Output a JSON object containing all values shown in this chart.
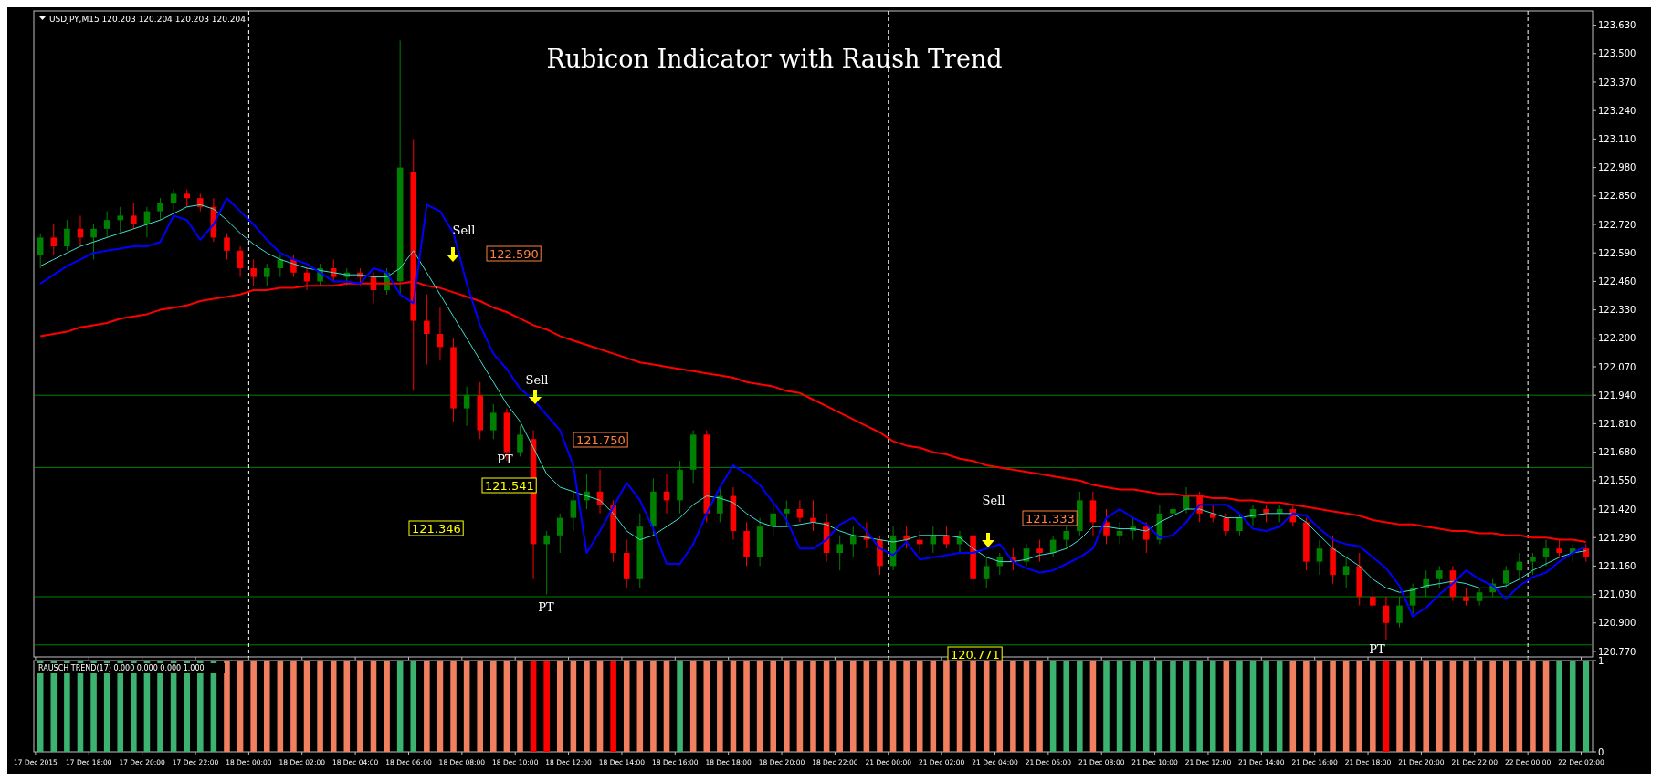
{
  "chart_data": [
    {
      "type": "candlestick",
      "title": "Rubicon Indicator with Raush Trend",
      "subtitle": "USDJPY,M15  120.203 120.204 120.203 120.204",
      "categories": [
        "17 Dec 2015",
        null,
        null,
        null,
        "17 Dec 18:00",
        null,
        null,
        null,
        "17 Dec 20:00",
        null,
        null,
        null,
        "17 Dec 22:00",
        null,
        null,
        null,
        "18 Dec 00:00",
        null,
        null,
        null,
        "18 Dec 02:00",
        null,
        null,
        null,
        "18 Dec 04:00",
        null,
        null,
        null,
        "18 Dec 06:00",
        null,
        null,
        null,
        "18 Dec 08:00",
        null,
        null,
        null,
        "18 Dec 10:00",
        null,
        null,
        null,
        "18 Dec 12:00",
        null,
        null,
        null,
        "18 Dec 14:00",
        null,
        null,
        null,
        "18 Dec 16:00",
        null,
        null,
        null,
        "18 Dec 18:00",
        null,
        null,
        null,
        "18 Dec 20:00",
        null,
        null,
        null,
        "18 Dec 22:00",
        null,
        null,
        null,
        "21 Dec 00:00",
        null,
        null,
        null,
        "21 Dec 02:00",
        null,
        null,
        null,
        "21 Dec 04:00",
        null,
        null,
        null,
        "21 Dec 06:00",
        null,
        null,
        null,
        "21 Dec 08:00",
        null,
        null,
        null,
        "21 Dec 10:00",
        null,
        null,
        null,
        "21 Dec 12:00",
        null,
        null,
        null,
        "21 Dec 14:00",
        null,
        null,
        null,
        "21 Dec 16:00",
        null,
        null,
        null,
        "21 Dec 18:00",
        null,
        null,
        null,
        "21 Dec 20:00",
        null,
        null,
        null,
        "21 Dec 22:00",
        null,
        null,
        null,
        "22 Dec 00:00",
        null,
        null,
        null,
        "22 Dec 02:00"
      ],
      "ohlc": [
        [
          122.58,
          122.68,
          122.52,
          122.66
        ],
        [
          122.66,
          122.72,
          122.58,
          122.62
        ],
        [
          122.62,
          122.74,
          122.6,
          122.7
        ],
        [
          122.7,
          122.76,
          122.62,
          122.66
        ],
        [
          122.66,
          122.72,
          122.56,
          122.7
        ],
        [
          122.7,
          122.78,
          122.66,
          122.74
        ],
        [
          122.74,
          122.8,
          122.68,
          122.76
        ],
        [
          122.76,
          122.82,
          122.7,
          122.72
        ],
        [
          122.72,
          122.8,
          122.66,
          122.78
        ],
        [
          122.78,
          122.84,
          122.74,
          122.82
        ],
        [
          122.82,
          122.88,
          122.78,
          122.86
        ],
        [
          122.86,
          122.88,
          122.8,
          122.84
        ],
        [
          122.84,
          122.86,
          122.78,
          122.8
        ],
        [
          122.8,
          122.84,
          122.64,
          122.66
        ],
        [
          122.66,
          122.68,
          122.56,
          122.6
        ],
        [
          122.6,
          122.62,
          122.48,
          122.52
        ],
        [
          122.52,
          122.56,
          122.44,
          122.48
        ],
        [
          122.48,
          122.54,
          122.44,
          122.52
        ],
        [
          122.52,
          122.58,
          122.48,
          122.56
        ],
        [
          122.56,
          122.58,
          122.48,
          122.5
        ],
        [
          122.5,
          122.52,
          122.42,
          122.46
        ],
        [
          122.46,
          122.54,
          122.44,
          122.52
        ],
        [
          122.52,
          122.56,
          122.46,
          122.48
        ],
        [
          122.48,
          122.52,
          122.44,
          122.5
        ],
        [
          122.5,
          122.52,
          122.44,
          122.48
        ],
        [
          122.48,
          122.5,
          122.36,
          122.42
        ],
        [
          122.42,
          122.52,
          122.4,
          122.5
        ],
        [
          122.46,
          123.56,
          122.4,
          122.98
        ],
        [
          122.96,
          123.11,
          121.96,
          122.28
        ],
        [
          122.28,
          122.4,
          122.08,
          122.22
        ],
        [
          122.22,
          122.34,
          122.1,
          122.16
        ],
        [
          122.16,
          122.2,
          121.82,
          121.88
        ],
        [
          121.88,
          121.98,
          121.8,
          121.94
        ],
        [
          121.94,
          122,
          121.74,
          121.78
        ],
        [
          121.78,
          121.9,
          121.74,
          121.86
        ],
        [
          121.86,
          121.88,
          121.64,
          121.68
        ],
        [
          121.68,
          121.8,
          121.66,
          121.76
        ],
        [
          121.74,
          121.78,
          121.1,
          121.26
        ],
        [
          121.26,
          121.32,
          121.03,
          121.3
        ],
        [
          121.3,
          121.4,
          121.22,
          121.38
        ],
        [
          121.38,
          121.5,
          121.32,
          121.46
        ],
        [
          121.46,
          121.58,
          121.42,
          121.5
        ],
        [
          121.5,
          121.6,
          121.4,
          121.44
        ],
        [
          121.44,
          121.46,
          121.18,
          121.22
        ],
        [
          121.22,
          121.28,
          121.06,
          121.1
        ],
        [
          121.1,
          121.4,
          121.06,
          121.34
        ],
        [
          121.34,
          121.56,
          121.3,
          121.5
        ],
        [
          121.5,
          121.58,
          121.4,
          121.46
        ],
        [
          121.46,
          121.64,
          121.4,
          121.6
        ],
        [
          121.6,
          121.78,
          121.54,
          121.76
        ],
        [
          121.76,
          121.78,
          121.36,
          121.4
        ],
        [
          121.4,
          121.52,
          121.36,
          121.48
        ],
        [
          121.48,
          121.52,
          121.28,
          121.32
        ],
        [
          121.32,
          121.36,
          121.16,
          121.2
        ],
        [
          121.2,
          121.38,
          121.16,
          121.34
        ],
        [
          121.34,
          121.44,
          121.3,
          121.4
        ],
        [
          121.4,
          121.46,
          121.34,
          121.42
        ],
        [
          121.42,
          121.46,
          121.36,
          121.38
        ],
        [
          121.38,
          121.46,
          121.32,
          121.36
        ],
        [
          121.36,
          121.4,
          121.18,
          121.22
        ],
        [
          121.22,
          121.3,
          121.14,
          121.26
        ],
        [
          121.26,
          121.34,
          121.2,
          121.3
        ],
        [
          121.3,
          121.36,
          121.24,
          121.28
        ],
        [
          121.28,
          121.3,
          121.12,
          121.16
        ],
        [
          121.16,
          121.34,
          121.14,
          121.3
        ],
        [
          121.3,
          121.34,
          121.24,
          121.28
        ],
        [
          121.28,
          121.32,
          121.22,
          121.26
        ],
        [
          121.26,
          121.34,
          121.22,
          121.3
        ],
        [
          121.3,
          121.34,
          121.24,
          121.26
        ],
        [
          121.26,
          121.32,
          121.22,
          121.3
        ],
        [
          121.3,
          121.32,
          121.04,
          121.1
        ],
        [
          121.1,
          121.2,
          121.06,
          121.16
        ],
        [
          121.16,
          121.22,
          121.12,
          121.2
        ],
        [
          121.2,
          121.24,
          121.14,
          121.18
        ],
        [
          121.18,
          121.26,
          121.16,
          121.24
        ],
        [
          121.24,
          121.28,
          121.18,
          121.22
        ],
        [
          121.22,
          121.3,
          121.2,
          121.28
        ],
        [
          121.28,
          121.34,
          121.24,
          121.32
        ],
        [
          121.32,
          121.5,
          121.3,
          121.46
        ],
        [
          121.46,
          121.5,
          121.3,
          121.36
        ],
        [
          121.36,
          121.42,
          121.26,
          121.3
        ],
        [
          121.3,
          121.36,
          121.26,
          121.32
        ],
        [
          121.32,
          121.38,
          121.28,
          121.34
        ],
        [
          121.34,
          121.36,
          121.22,
          121.28
        ],
        [
          121.28,
          121.44,
          121.26,
          121.4
        ],
        [
          121.4,
          121.46,
          121.36,
          121.42
        ],
        [
          121.42,
          121.52,
          121.4,
          121.48
        ],
        [
          121.48,
          121.5,
          121.36,
          121.4
        ],
        [
          121.4,
          121.44,
          121.36,
          121.38
        ],
        [
          121.38,
          121.4,
          121.3,
          121.32
        ],
        [
          121.32,
          121.4,
          121.3,
          121.38
        ],
        [
          121.38,
          121.44,
          121.34,
          121.42
        ],
        [
          121.42,
          121.44,
          121.36,
          121.4
        ],
        [
          121.4,
          121.44,
          121.36,
          121.42
        ],
        [
          121.42,
          121.44,
          121.34,
          121.36
        ],
        [
          121.36,
          121.38,
          121.14,
          121.18
        ],
        [
          121.18,
          121.28,
          121.12,
          121.24
        ],
        [
          121.24,
          121.3,
          121.08,
          121.12
        ],
        [
          121.12,
          121.2,
          121.06,
          121.16
        ],
        [
          121.16,
          121.22,
          120.98,
          121.02
        ],
        [
          121.02,
          121.06,
          120.96,
          120.98
        ],
        [
          120.98,
          121.02,
          120.82,
          120.9
        ],
        [
          120.9,
          121.02,
          120.88,
          120.98
        ],
        [
          120.98,
          121.08,
          120.94,
          121.06
        ],
        [
          121.06,
          121.14,
          121.02,
          121.1
        ],
        [
          121.1,
          121.16,
          121.06,
          121.14
        ],
        [
          121.14,
          121.16,
          121,
          121.02
        ],
        [
          121.02,
          121.06,
          120.98,
          121
        ],
        [
          121,
          121.06,
          120.98,
          121.04
        ],
        [
          121.04,
          121.1,
          121.02,
          121.08
        ],
        [
          121.08,
          121.16,
          121.06,
          121.14
        ],
        [
          121.14,
          121.22,
          121.1,
          121.18
        ],
        [
          121.18,
          121.22,
          121.12,
          121.2
        ],
        [
          121.2,
          121.28,
          121.16,
          121.24
        ],
        [
          121.24,
          121.28,
          121.2,
          121.22
        ],
        [
          121.22,
          121.26,
          121.18,
          121.24
        ],
        [
          121.24,
          121.26,
          121.18,
          121.2
        ]
      ],
      "series": [
        {
          "type": "line",
          "color": "#ff0000",
          "values": [
            122.21,
            122.22,
            122.23,
            122.25,
            122.26,
            122.27,
            122.29,
            122.3,
            122.31,
            122.33,
            122.34,
            122.35,
            122.37,
            122.38,
            122.39,
            122.4,
            122.42,
            122.42,
            122.43,
            122.43,
            122.44,
            122.44,
            122.44,
            122.45,
            122.45,
            122.45,
            122.45,
            122.45,
            122.46,
            122.44,
            122.43,
            122.41,
            122.39,
            122.37,
            122.34,
            122.32,
            122.29,
            122.26,
            122.24,
            122.21,
            122.19,
            122.17,
            122.15,
            122.13,
            122.11,
            122.09,
            122.08,
            122.07,
            122.06,
            122.05,
            122.04,
            122.03,
            122.02,
            122,
            121.99,
            121.98,
            121.96,
            121.95,
            121.92,
            121.89,
            121.86,
            121.83,
            121.8,
            121.77,
            121.73,
            121.71,
            121.7,
            121.68,
            121.67,
            121.65,
            121.64,
            121.62,
            121.61,
            121.6,
            121.59,
            121.58,
            121.57,
            121.56,
            121.55,
            121.53,
            121.52,
            121.51,
            121.51,
            121.5,
            121.49,
            121.49,
            121.48,
            121.48,
            121.47,
            121.47,
            121.46,
            121.46,
            121.45,
            121.45,
            121.44,
            121.43,
            121.42,
            121.41,
            121.4,
            121.39,
            121.37,
            121.36,
            121.35,
            121.35,
            121.34,
            121.33,
            121.32,
            121.32,
            121.31,
            121.31,
            121.3,
            121.3,
            121.29,
            121.29,
            121.28,
            121.28,
            121.27
          ]
        },
        {
          "type": "line",
          "color": "#40e0d0",
          "values": [
            122.53,
            122.56,
            122.59,
            122.62,
            122.64,
            122.66,
            122.68,
            122.7,
            122.72,
            122.74,
            122.77,
            122.8,
            122.81,
            122.79,
            122.74,
            122.68,
            122.63,
            122.59,
            122.56,
            122.54,
            122.52,
            122.51,
            122.5,
            122.49,
            122.49,
            122.48,
            122.48,
            122.52,
            122.6,
            122.5,
            122.4,
            122.3,
            122.2,
            122.1,
            122,
            121.9,
            121.82,
            121.7,
            121.58,
            121.52,
            121.5,
            121.48,
            121.46,
            121.4,
            121.32,
            121.28,
            121.3,
            121.34,
            121.38,
            121.44,
            121.48,
            121.47,
            121.45,
            121.4,
            121.36,
            121.34,
            121.34,
            121.35,
            121.36,
            121.35,
            121.32,
            121.3,
            121.29,
            121.28,
            121.27,
            121.28,
            121.3,
            121.3,
            121.3,
            121.29,
            121.24,
            121.2,
            121.18,
            121.18,
            121.19,
            121.21,
            121.22,
            121.24,
            121.28,
            121.34,
            121.34,
            121.33,
            121.33,
            121.32,
            121.36,
            121.39,
            121.42,
            121.42,
            121.4,
            121.38,
            121.38,
            121.39,
            121.4,
            121.4,
            121.4,
            121.36,
            121.3,
            121.24,
            121.2,
            121.16,
            121.1,
            121.06,
            121.04,
            121.05,
            121.07,
            121.08,
            121.09,
            121.08,
            121.06,
            121.06,
            121.07,
            121.1,
            121.14,
            121.17,
            121.2,
            121.22,
            121.23
          ]
        },
        {
          "type": "line",
          "color": "#0000ff",
          "values": [
            122.45,
            122.49,
            122.53,
            122.56,
            122.59,
            122.6,
            122.61,
            122.62,
            122.62,
            122.64,
            122.76,
            122.74,
            122.65,
            122.72,
            122.84,
            122.78,
            122.72,
            122.65,
            122.59,
            122.56,
            122.54,
            122.5,
            122.46,
            122.46,
            122.45,
            122.52,
            122.5,
            122.4,
            122.36,
            122.81,
            122.78,
            122.68,
            122.45,
            122.26,
            122.13,
            122.06,
            121.97,
            121.92,
            121.85,
            121.78,
            121.62,
            121.22,
            121.32,
            121.43,
            121.54,
            121.46,
            121.33,
            121.17,
            121.17,
            121.26,
            121.4,
            121.52,
            121.62,
            121.58,
            121.53,
            121.45,
            121.37,
            121.24,
            121.24,
            121.28,
            121.35,
            121.38,
            121.32,
            121.24,
            121.21,
            121.27,
            121.19,
            121.2,
            121.21,
            121.22,
            121.22,
            121.24,
            121.26,
            121.18,
            121.15,
            121.13,
            121.14,
            121.17,
            121.2,
            121.24,
            121.38,
            121.42,
            121.38,
            121.35,
            121.29,
            121.3,
            121.36,
            121.44,
            121.44,
            121.44,
            121.4,
            121.33,
            121.32,
            121.34,
            121.4,
            121.39,
            121.33,
            121.28,
            121.26,
            121.25,
            121.2,
            121.15,
            121.07,
            120.93,
            120.97,
            121.03,
            121.08,
            121.14,
            121.1,
            121.07,
            121.01,
            121.07,
            121.11,
            121.13,
            121.18,
            121.22,
            121.25
          ]
        }
      ],
      "ylim": [
        120.745,
        123.695
      ],
      "yticks": [
        {
          "value": 120.77,
          "label": "120.770"
        },
        {
          "value": 120.9,
          "label": "120.900"
        },
        {
          "value": 121.03,
          "label": "121.030"
        },
        {
          "value": 121.16,
          "label": "121.160"
        },
        {
          "value": 121.29,
          "label": "121.290"
        },
        {
          "value": 121.42,
          "label": "121.420"
        },
        {
          "value": 121.55,
          "label": "121.550"
        },
        {
          "value": 121.68,
          "label": "121.680"
        },
        {
          "value": 121.81,
          "label": "121.810"
        },
        {
          "value": 121.94,
          "label": "121.940"
        },
        {
          "value": 122.07,
          "label": "122.070"
        },
        {
          "value": 122.2,
          "label": "122.200"
        },
        {
          "value": 122.33,
          "label": "122.330"
        },
        {
          "value": 122.46,
          "label": "122.460"
        },
        {
          "value": 122.59,
          "label": "122.590"
        },
        {
          "value": 122.72,
          "label": "122.720"
        },
        {
          "value": 122.85,
          "label": "122.850"
        },
        {
          "value": 122.98,
          "label": "122.980"
        },
        {
          "value": 123.11,
          "label": "123.110"
        },
        {
          "value": 123.24,
          "label": "123.240"
        },
        {
          "value": 123.37,
          "label": "123.370"
        },
        {
          "value": 123.5,
          "label": "123.500"
        },
        {
          "value": 123.63,
          "label": "123.630"
        }
      ],
      "tick_labels": "y",
      "ref_lines": [
        {
          "axis": "y",
          "value": 121.94,
          "color": "#008000"
        },
        {
          "axis": "y",
          "value": 121.61,
          "color": "#008000"
        },
        {
          "axis": "y",
          "value": 121.02,
          "color": "#008000"
        },
        {
          "axis": "y",
          "value": 120.8,
          "color": "#008000"
        },
        {
          "axis": "x",
          "value": "18 Dec 00:00",
          "color": "#ffffff",
          "line_style": "dashed"
        },
        {
          "axis": "x",
          "value": "21 Dec 00:00",
          "color": "#ffffff",
          "line_style": "dashed"
        },
        {
          "axis": "x",
          "value": "22 Dec 00:00",
          "color": "#ffffff",
          "line_style": "dashed"
        }
      ],
      "annotations": [
        "Sell",
        "122.590",
        "Sell",
        "121.750",
        "PT",
        "121.541",
        "121.346",
        "PT",
        "Sell",
        "121.333",
        "120.771",
        "PT"
      ]
    },
    {
      "type": "bar",
      "title": "RAUSCH TREND(17) 0.000 0.000 0.000 1.000",
      "categories": [
        "17 Dec 2015",
        null,
        null,
        null,
        "17 Dec 18:00",
        null,
        null,
        null,
        "17 Dec 20:00",
        null,
        null,
        null,
        "17 Dec 22:00",
        null,
        null,
        null,
        "18 Dec 00:00",
        null,
        null,
        null,
        "18 Dec 02:00",
        null,
        null,
        null,
        "18 Dec 04:00",
        null,
        null,
        null,
        "18 Dec 06:00",
        null,
        null,
        null,
        "18 Dec 08:00",
        null,
        null,
        null,
        "18 Dec 10:00",
        null,
        null,
        null,
        "18 Dec 12:00",
        null,
        null,
        null,
        "18 Dec 14:00",
        null,
        null,
        null,
        "18 Dec 16:00",
        null,
        null,
        null,
        "18 Dec 18:00",
        null,
        null,
        null,
        "18 Dec 20:00",
        null,
        null,
        null,
        "18 Dec 22:00",
        null,
        null,
        null,
        "21 Dec 00:00",
        null,
        null,
        null,
        "21 Dec 02:00",
        null,
        null,
        null,
        "21 Dec 04:00",
        null,
        null,
        null,
        "21 Dec 06:00",
        null,
        null,
        null,
        "21 Dec 08:00",
        null,
        null,
        null,
        "21 Dec 10:00",
        null,
        null,
        null,
        "21 Dec 12:00",
        null,
        null,
        null,
        "21 Dec 14:00",
        null,
        null,
        null,
        "21 Dec 16:00",
        null,
        null,
        null,
        "21 Dec 18:00",
        null,
        null,
        null,
        "21 Dec 20:00",
        null,
        null,
        null,
        "21 Dec 22:00",
        null,
        null,
        null,
        "22 Dec 00:00",
        null,
        null,
        null,
        "22 Dec 02:00"
      ],
      "values": [
        1,
        1,
        1,
        1,
        1,
        1,
        1,
        1,
        1,
        1,
        1,
        1,
        1,
        1,
        1,
        1,
        1,
        1,
        1,
        1,
        1,
        1,
        1,
        1,
        1,
        1,
        1,
        1,
        1,
        1,
        1,
        1,
        1,
        1,
        1,
        1,
        1,
        1,
        1,
        1,
        1,
        1,
        1,
        1,
        1,
        1,
        1,
        1,
        1,
        1,
        1,
        1,
        1,
        1,
        1,
        1,
        1,
        1,
        1,
        1,
        1,
        1,
        1,
        1,
        1,
        1,
        1,
        1,
        1,
        1,
        1,
        1,
        1,
        1,
        1,
        1,
        1,
        1,
        1,
        1,
        1,
        1,
        1,
        1,
        1,
        1,
        1,
        1,
        1,
        1,
        1,
        1,
        1,
        1,
        1,
        1,
        1,
        1,
        1,
        1,
        1,
        1,
        1,
        1,
        1,
        1,
        1,
        1,
        1,
        1,
        1,
        1,
        1,
        1,
        1,
        1,
        1
      ],
      "colors": [
        "#3cb371",
        "#3cb371",
        "#3cb371",
        "#3cb371",
        "#3cb371",
        "#3cb371",
        "#3cb371",
        "#3cb371",
        "#3cb371",
        "#3cb371",
        "#3cb371",
        "#3cb371",
        "#3cb371",
        "#3cb371",
        "#f08060",
        "#f08060",
        "#f08060",
        "#f08060",
        "#f08060",
        "#f08060",
        "#f08060",
        "#f08060",
        "#f08060",
        "#f08060",
        "#f08060",
        "#f08060",
        "#f08060",
        "#3cb371",
        "#3cb371",
        "#f08060",
        "#f08060",
        "#f08060",
        "#f08060",
        "#f08060",
        "#f08060",
        "#f08060",
        "#f08060",
        "#ff0000",
        "#ff0000",
        "#f08060",
        "#f08060",
        "#f08060",
        "#f08060",
        "#ff0000",
        "#f08060",
        "#f08060",
        "#f08060",
        "#f08060",
        "#3cb371",
        "#f08060",
        "#f08060",
        "#f08060",
        "#f08060",
        "#f08060",
        "#f08060",
        "#f08060",
        "#f08060",
        "#f08060",
        "#f08060",
        "#f08060",
        "#f08060",
        "#f08060",
        "#f08060",
        "#f08060",
        "#f08060",
        "#f08060",
        "#f08060",
        "#f08060",
        "#f08060",
        "#f08060",
        "#f08060",
        "#f08060",
        "#f08060",
        "#f08060",
        "#f08060",
        "#f08060",
        "#3cb371",
        "#3cb371",
        "#3cb371",
        "#f08060",
        "#3cb371",
        "#3cb371",
        "#3cb371",
        "#3cb371",
        "#3cb371",
        "#3cb371",
        "#3cb371",
        "#3cb371",
        "#3cb371",
        "#f08060",
        "#3cb371",
        "#3cb371",
        "#3cb371",
        "#3cb371",
        "#f08060",
        "#f08060",
        "#f08060",
        "#f08060",
        "#f08060",
        "#f08060",
        "#f08060",
        "#ff0000",
        "#f08060",
        "#f08060",
        "#f08060",
        "#f08060",
        "#f08060",
        "#f08060",
        "#f08060",
        "#f08060",
        "#f08060",
        "#f08060",
        "#f08060",
        "#f08060",
        "#3cb371",
        "#3cb371",
        "#3cb371"
      ],
      "ylim": [
        0,
        1
      ],
      "yticks": [
        0,
        1
      ]
    }
  ]
}
